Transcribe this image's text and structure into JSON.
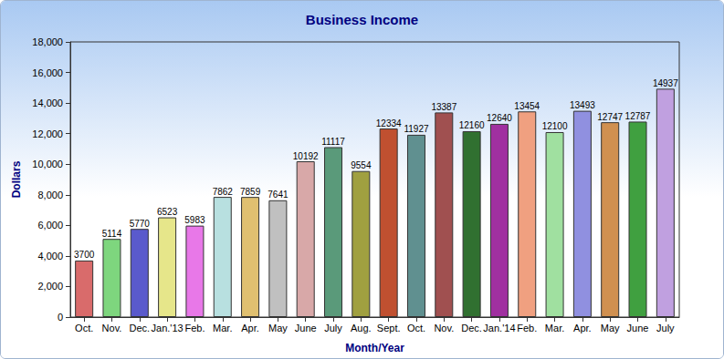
{
  "chart_data": {
    "type": "bar",
    "title": "Business Income",
    "x_label": "Month/Year",
    "y_label": "Dollars",
    "categories": [
      "Oct.",
      "Nov.",
      "Dec.",
      "Jan.'13",
      "Feb.",
      "Mar.",
      "Apr.",
      "May",
      "June",
      "July",
      "Aug.",
      "Sept.",
      "Oct.",
      "Nov.",
      "Dec.",
      "Jan.'14",
      "Feb.",
      "Mar.",
      "Apr.",
      "May",
      "June",
      "July"
    ],
    "values": [
      3700,
      5114,
      5770,
      6523,
      5983,
      7862,
      7859,
      7641,
      10192,
      11117,
      9554,
      12334,
      11927,
      13387,
      12160,
      12640,
      13454,
      12100,
      13493,
      12747,
      12787,
      14937
    ],
    "colors": [
      "#d96b6b",
      "#7ed67e",
      "#5a5acc",
      "#e6e68a",
      "#e878e8",
      "#b8e0e0",
      "#e0c070",
      "#c0c0c0",
      "#d8a8a8",
      "#5a9a7a",
      "#a0a040",
      "#c05030",
      "#609090",
      "#a05050",
      "#307030",
      "#a030a0",
      "#f0a080",
      "#a0e0a0",
      "#9090e0",
      "#d09050",
      "#40a040",
      "#c0a0e0"
    ],
    "ylim": [
      0,
      18000
    ],
    "yticks": [
      0,
      2000,
      4000,
      6000,
      8000,
      10000,
      12000,
      14000,
      16000,
      18000
    ],
    "grid": false,
    "data_labels": true
  }
}
